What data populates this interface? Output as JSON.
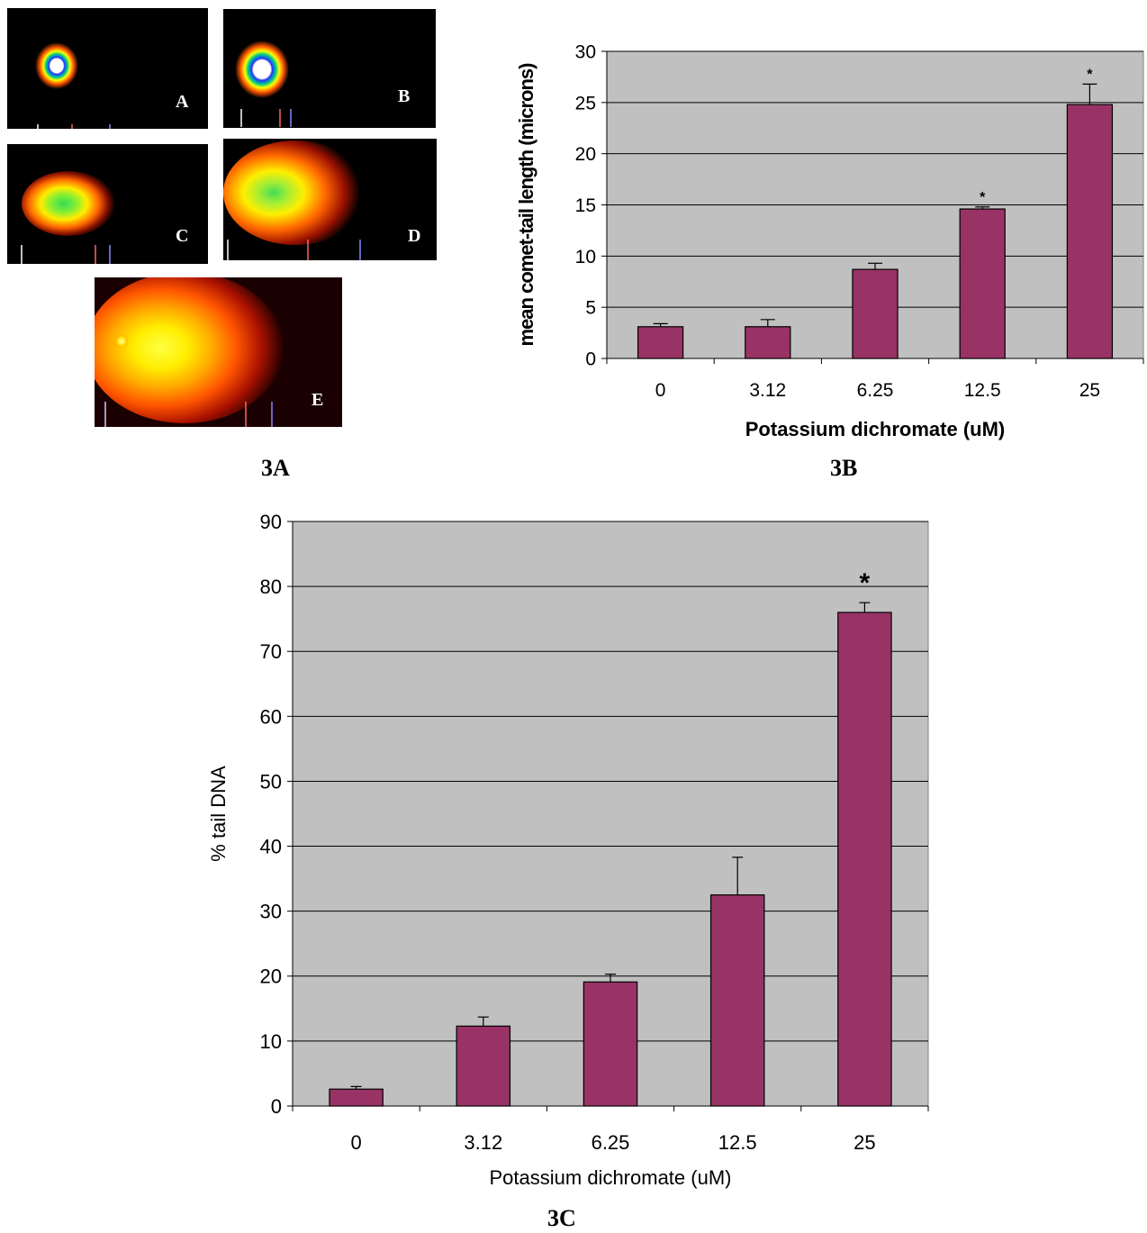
{
  "figure_3a": {
    "caption": "3A",
    "panels": [
      {
        "letter": "A"
      },
      {
        "letter": "B"
      },
      {
        "letter": "C"
      },
      {
        "letter": "D"
      },
      {
        "letter": "E"
      }
    ]
  },
  "captions": {
    "b": "3B",
    "c": "3C"
  },
  "chart_data": [
    {
      "id": "3B",
      "type": "bar",
      "categories": [
        "0",
        "3.12",
        "6.25",
        "12.5",
        "25"
      ],
      "values": [
        3.1,
        3.1,
        8.7,
        14.6,
        24.8
      ],
      "errors": [
        0.3,
        0.7,
        0.6,
        0.2,
        2.0
      ],
      "significance": [
        "",
        "",
        "",
        "*",
        "*"
      ],
      "ylabel": "mean comet-tail length (microns)",
      "xlabel": "Potassium dichromate (uM)",
      "ylim": [
        0,
        30
      ],
      "yticks": [
        0,
        5,
        10,
        15,
        20,
        25,
        30
      ],
      "grid": true,
      "bar_color": "#993366",
      "plot_bg": "#c0c0c0"
    },
    {
      "id": "3C",
      "type": "bar",
      "categories": [
        "0",
        "3.12",
        "6.25",
        "12.5",
        "25"
      ],
      "values": [
        2.6,
        12.3,
        19.1,
        32.5,
        76.0
      ],
      "errors": [
        0.4,
        1.4,
        1.2,
        5.8,
        1.5
      ],
      "significance": [
        "",
        "",
        "",
        "",
        "*"
      ],
      "ylabel": "% tail DNA",
      "xlabel": "Potassium dichromate  (uM)",
      "ylim": [
        0,
        90
      ],
      "yticks": [
        0,
        10,
        20,
        30,
        40,
        50,
        60,
        70,
        80,
        90
      ],
      "grid": true,
      "bar_color": "#993366",
      "plot_bg": "#c0c0c0"
    }
  ]
}
